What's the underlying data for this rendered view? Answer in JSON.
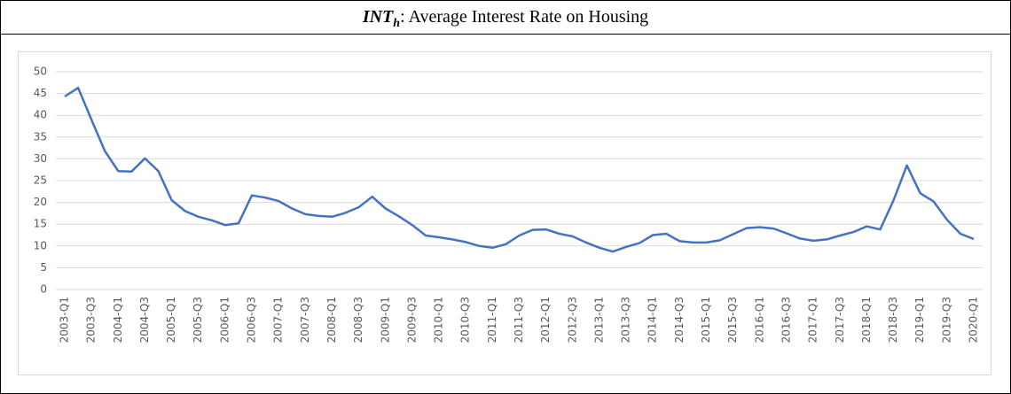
{
  "chart_data": {
    "type": "line",
    "title": {
      "symbol": "INT",
      "subscript": "h",
      "text": ": Average Interest Rate on Housing"
    },
    "categories": [
      "2003-Q1",
      null,
      "2003-Q3",
      null,
      "2004-Q1",
      null,
      "2004-Q3",
      null,
      "2005-Q1",
      null,
      "2005-Q3",
      null,
      "2006-Q1",
      null,
      "2006-Q3",
      null,
      "2007-Q1",
      null,
      "2007-Q3",
      null,
      "2008-Q1",
      null,
      "2008-Q3",
      null,
      "2009-Q1",
      null,
      "2009-Q3",
      null,
      "2010-Q1",
      null,
      "2010-Q3",
      null,
      "2011-Q1",
      null,
      "2011-Q3",
      null,
      "2012-Q1",
      null,
      "2012-Q3",
      null,
      "2013-Q1",
      null,
      "2013-Q3",
      null,
      "2014-Q1",
      null,
      "2014-Q3",
      null,
      "2015-Q1",
      null,
      "2015-Q3",
      null,
      "2016-Q1",
      null,
      "2016-Q3",
      null,
      "2017-Q1",
      null,
      "2017-Q3",
      null,
      "2018-Q1",
      null,
      "2018-Q3",
      null,
      "2019-Q1",
      null,
      "2019-Q3",
      null,
      "2020-Q1"
    ],
    "values": [
      44.3,
      46.3,
      39,
      31.8,
      27.2,
      27.1,
      30.1,
      27.2,
      20.5,
      18,
      16.7,
      15.9,
      14.8,
      15.2,
      21.6,
      21.1,
      20.3,
      18.6,
      17.3,
      16.9,
      16.7,
      17.6,
      18.9,
      21.3,
      18.6,
      16.8,
      14.8,
      12.4,
      12,
      11.5,
      10.9,
      10,
      9.6,
      10.4,
      12.4,
      13.7,
      13.8,
      12.8,
      12.2,
      10.8,
      9.6,
      8.7,
      9.8,
      10.7,
      12.5,
      12.8,
      11.1,
      10.8,
      10.8,
      11.3,
      12.7,
      14.1,
      14.3,
      14,
      12.9,
      11.7,
      11.2,
      11.5,
      12.4,
      13.2,
      14.5,
      13.8,
      20.5,
      28.5,
      22.1,
      20.2,
      16,
      12.8,
      11.6
    ],
    "color": "#4472c4",
    "ylim": [
      0,
      50
    ],
    "yticks": [
      0,
      5,
      10,
      15,
      20,
      25,
      30,
      35,
      40,
      45,
      50
    ],
    "grid": true
  }
}
